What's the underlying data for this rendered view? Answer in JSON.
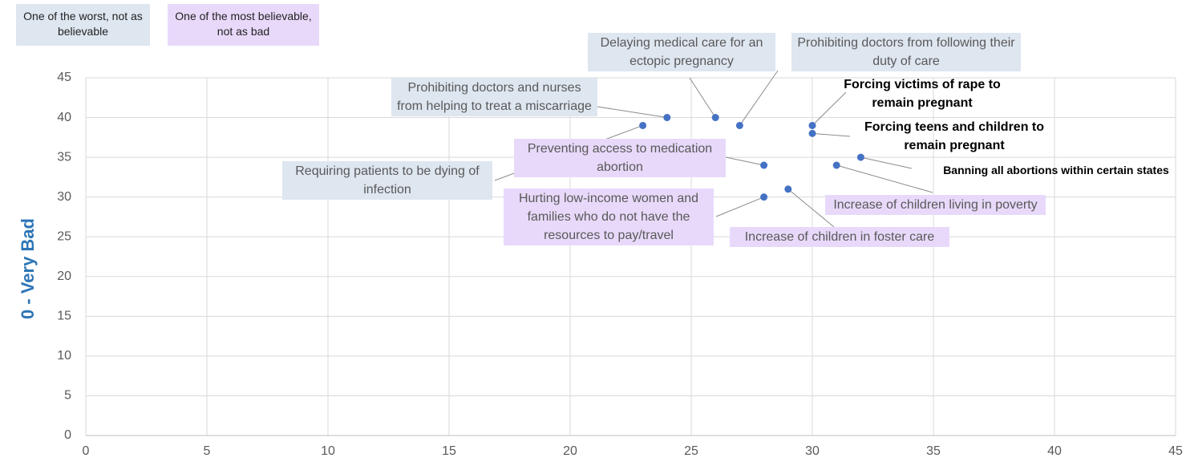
{
  "chart_data": {
    "type": "scatter",
    "y_label": "0 - Very Bad",
    "legend": [
      {
        "label": "One of the worst, not as believable",
        "color": "#dee6f0"
      },
      {
        "label": "One of the most believable, not as bad",
        "color": "#e8d9fa"
      }
    ],
    "color": "#4472c4",
    "points": [
      {
        "label": "Prohibiting doctors and nurses from helping to treat a miscarriage",
        "x": 24,
        "y": 40,
        "label_color": "#dee6f0"
      },
      {
        "label": "Delaying medical care for an ectopic pregnancy",
        "x": 26,
        "y": 40,
        "label_color": "#dee6f0"
      },
      {
        "label": "Prohibiting doctors from following their duty of care",
        "x": 27,
        "y": 39,
        "label_color": "#dee6f0"
      },
      {
        "label": "Forcing victims of rape to remain pregnant",
        "x": 30,
        "y": 39,
        "label_color": null
      },
      {
        "label": "Forcing teens and children to remain pregnant",
        "x": 30,
        "y": 38,
        "label_color": null
      },
      {
        "label": "Banning all abortions within certain states",
        "x": 32,
        "y": 35,
        "label_color": null
      },
      {
        "label": "Increase of children living in poverty",
        "x": 31,
        "y": 34,
        "label_color": "#e8d9fa"
      },
      {
        "label": "Preventing access to medication abortion",
        "x": 28,
        "y": 34,
        "label_color": "#e8d9fa"
      },
      {
        "label": "Requiring patients to be dying of infection",
        "x": 23,
        "y": 39,
        "label_color": "#dee6f0"
      },
      {
        "label": "Hurting low-income women and families who do not have the resources to pay/travel",
        "x": 28,
        "y": 30,
        "label_color": "#e8d9fa"
      },
      {
        "label": "Increase of children in foster care",
        "x": 29,
        "y": 31,
        "label_color": "#e8d9fa"
      }
    ],
    "xlim": [
      0,
      45
    ],
    "ylim": [
      0,
      45
    ],
    "xticks": [
      0,
      5,
      10,
      15,
      20,
      25,
      30,
      35,
      40,
      45
    ],
    "yticks": [
      0,
      5,
      10,
      15,
      20,
      25,
      30,
      35,
      40,
      45
    ],
    "grid": true
  }
}
